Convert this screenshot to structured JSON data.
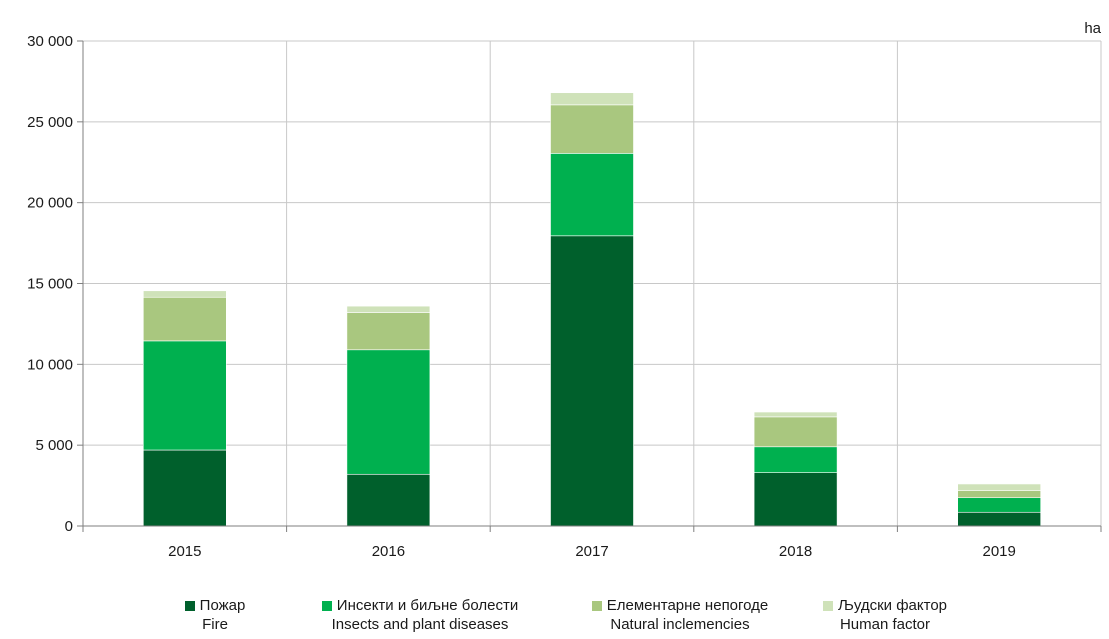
{
  "chart_data": {
    "type": "bar",
    "stacked": true,
    "unit_label": "ha",
    "categories": [
      "2015",
      "2016",
      "2017",
      "2018",
      "2019"
    ],
    "ylim": [
      0,
      30000
    ],
    "yticks": [
      0,
      5000,
      10000,
      15000,
      20000,
      25000,
      30000
    ],
    "ytick_labels": [
      "0",
      "5 000",
      "10 000",
      "15 000",
      "20 000",
      "25 000",
      "30 000"
    ],
    "grid": true,
    "legend_position": "bottom",
    "series": [
      {
        "name": "Пожар",
        "name_en": "Fire",
        "color": "#00602c",
        "values": [
          4700,
          3200,
          17950,
          3300,
          850
        ]
      },
      {
        "name": "Инсекти и биљне болести",
        "name_en": "Insects and plant diseases",
        "color": "#00b04f",
        "values": [
          6750,
          7700,
          5100,
          1600,
          900
        ]
      },
      {
        "name": "Елементарне непогоде",
        "name_en": "Natural inclemencies",
        "color": "#a9c77f",
        "values": [
          2700,
          2300,
          3000,
          1850,
          450
        ]
      },
      {
        "name": "Људски фактор",
        "name_en": "Human factor",
        "color": "#cfe2b9",
        "values": [
          400,
          400,
          750,
          300,
          400
        ]
      }
    ]
  }
}
